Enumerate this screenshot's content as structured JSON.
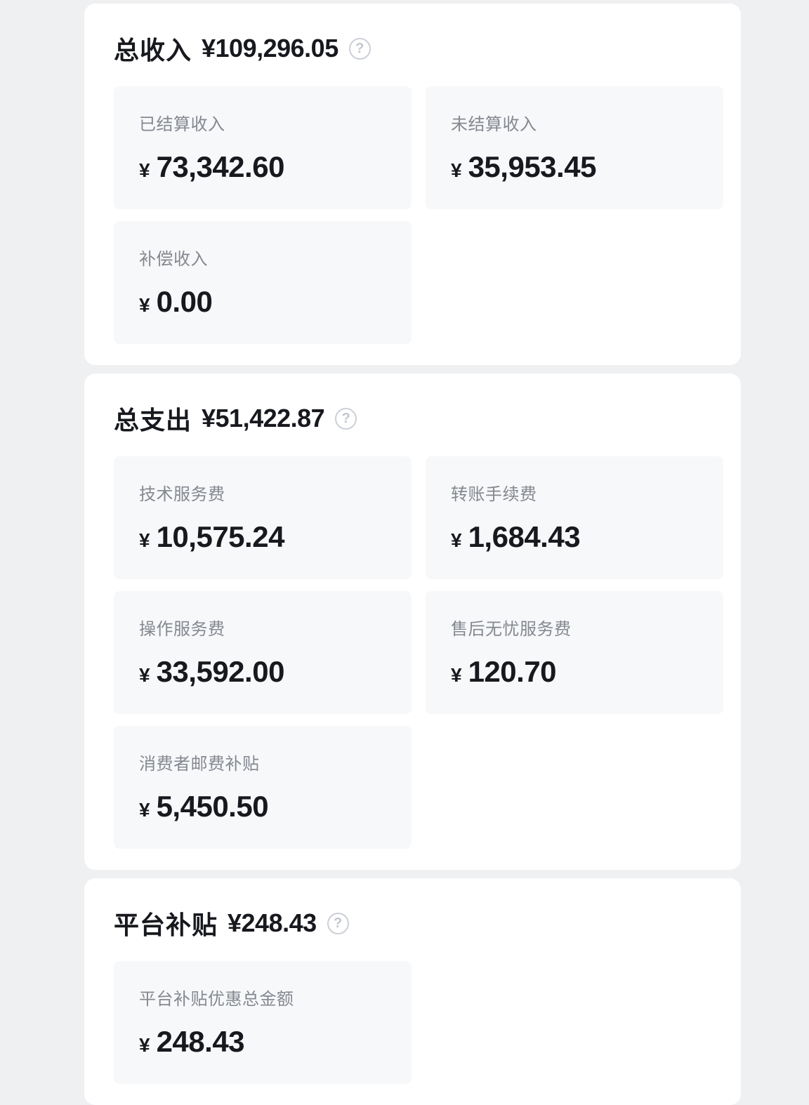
{
  "theme": {
    "page_bg": "#eff0f2",
    "panel_bg": "#ffffff",
    "card_bg": "#f7f8fa",
    "label_color": "#84888f",
    "value_color": "#17191e",
    "help_icon_color": "#c3c7cf"
  },
  "help_glyph": "?",
  "sections": [
    {
      "title": "总收入",
      "total": "¥109,296.05",
      "cards": [
        {
          "label": "已结算收入",
          "currency": "¥",
          "value": "73,342.60"
        },
        {
          "label": "未结算收入",
          "currency": "¥",
          "value": "35,953.45"
        },
        {
          "label": "补偿收入",
          "currency": "¥",
          "value": "0.00"
        }
      ]
    },
    {
      "title": "总支出",
      "total": "¥51,422.87",
      "cards": [
        {
          "label": "技术服务费",
          "currency": "¥",
          "value": "10,575.24"
        },
        {
          "label": "转账手续费",
          "currency": "¥",
          "value": "1,684.43"
        },
        {
          "label": "操作服务费",
          "currency": "¥",
          "value": "33,592.00"
        },
        {
          "label": "售后无忧服务费",
          "currency": "¥",
          "value": "120.70"
        },
        {
          "label": "消费者邮费补贴",
          "currency": "¥",
          "value": "5,450.50"
        }
      ]
    },
    {
      "title": "平台补贴",
      "total": "¥248.43",
      "cards": [
        {
          "label": "平台补贴优惠总金额",
          "currency": "¥",
          "value": "248.43"
        }
      ]
    }
  ]
}
